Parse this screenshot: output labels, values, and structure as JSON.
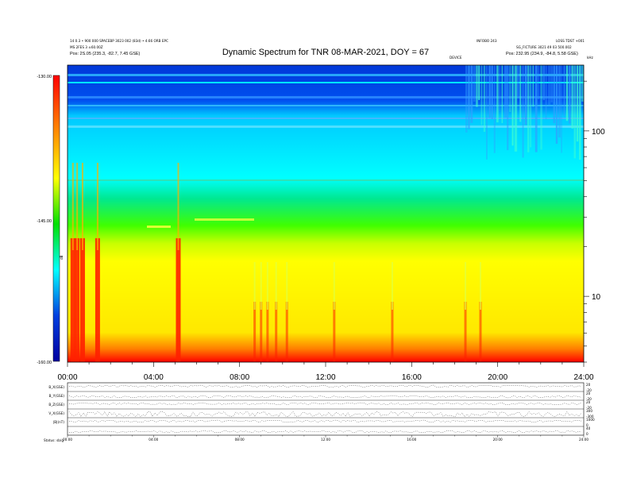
{
  "header": {
    "left_line1": "14 0.3 • 900 000 SPACEBP 3023 002 (83d) • 4.66 ORB EPC",
    "left_line2": "MS 2FES 3 ±60.00Z",
    "left_line3": "Pos: 2S.05 (235.3, -82.7, 7.45 GSE)",
    "right_line1": "INFOBO 243",
    "right_line1b": "LOSS TDST +001",
    "right_line2": "SG_FICTURE 3021 49 03 500.002",
    "right_line3": "Pos: 232.95 (234.9, -84.8, 5.58 GSE)",
    "right_tag": "DEVICE"
  },
  "colors": {
    "red": "#ff0000",
    "orange": "#ff8000",
    "yellow": "#ffff00",
    "green": "#00e000",
    "cyan": "#00ffff",
    "blue": "#0040e0",
    "navy": "#0000a0"
  },
  "chart_data": [
    {
      "type": "heatmap",
      "title": "Dynamic Spectrum for TNR 08-MAR-2021, DOY = 67",
      "xlabel": "",
      "ylabel": "",
      "x_range": [
        "00:00",
        "24:00"
      ],
      "x_ticks": [
        "00:00",
        "04:00",
        "08:00",
        "12:00",
        "16:00",
        "20:00",
        "24:00"
      ],
      "y_scale": "log",
      "y_range": [
        4,
        250
      ],
      "y_ticks": [
        10,
        100
      ],
      "y_top_label": "kHz",
      "colorbar": {
        "label": "dB",
        "range": [
          -160.0,
          -130.0
        ],
        "ticks": [
          "-130.00",
          "-145.00",
          "-160.00"
        ]
      },
      "bursts_hours": [
        0.25,
        0.45,
        0.7,
        1.4,
        5.15,
        8.7,
        9.0,
        9.3,
        9.7,
        10.2,
        12.4,
        15.1,
        18.5,
        19.2
      ],
      "noise_band_start_hour": 18.5
    },
    {
      "type": "line",
      "title": "",
      "x_range": [
        "00:00",
        "24:00"
      ],
      "x_ticks": [
        "00:00",
        "04:00",
        "08:00",
        "12:00",
        "16:00",
        "20:00",
        "24:00"
      ],
      "series": [
        {
          "name": "B_X(GSE)",
          "right_scale": [
            "20",
            "-20"
          ]
        },
        {
          "name": "B_Y(GSE)",
          "right_scale": [
            "20",
            "-20"
          ]
        },
        {
          "name": "B_Z(GSE)",
          "right_scale": [
            "20",
            "-20"
          ]
        },
        {
          "name": "V_X(GSE)",
          "right_scale": [
            "300",
            "-300"
          ]
        },
        {
          "name": "|B|(nT)",
          "right_scale": [
            "1000",
            "0"
          ]
        },
        {
          "name": "",
          "right_scale": [
            "40",
            "0"
          ]
        }
      ],
      "footer_label": "Status: sb/g"
    }
  ]
}
